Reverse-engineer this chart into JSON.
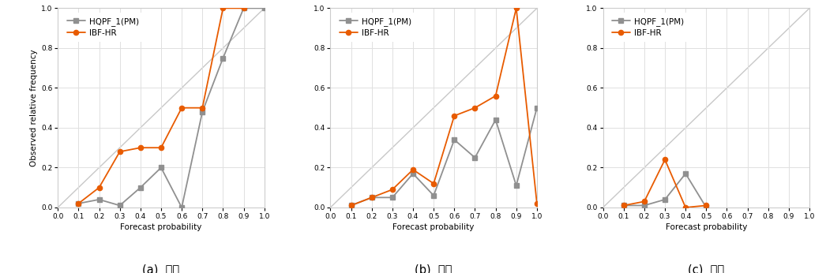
{
  "subplots": [
    {
      "label": "(a)  보행",
      "x": [
        0.1,
        0.2,
        0.3,
        0.4,
        0.5,
        0.6,
        0.7,
        0.8,
        0.9,
        1.0
      ],
      "hqpf": [
        0.02,
        0.04,
        0.01,
        0.1,
        0.2,
        0.0,
        0.48,
        0.75,
        1.0,
        1.0
      ],
      "ibfhr": [
        0.02,
        0.1,
        0.28,
        0.3,
        0.3,
        0.5,
        0.5,
        1.0,
        1.0,
        null
      ]
    },
    {
      "label": "(b)  교통",
      "x": [
        0.1,
        0.2,
        0.3,
        0.4,
        0.5,
        0.6,
        0.7,
        0.8,
        0.9,
        1.0
      ],
      "hqpf": [
        0.01,
        0.05,
        0.05,
        0.17,
        0.06,
        0.34,
        0.25,
        0.44,
        0.11,
        0.5
      ],
      "ibfhr": [
        0.01,
        0.05,
        0.09,
        0.19,
        0.12,
        0.46,
        0.5,
        0.56,
        1.0,
        0.02
      ]
    },
    {
      "label": "(c)  시설",
      "x": [
        0.1,
        0.2,
        0.3,
        0.4,
        0.5,
        0.6,
        0.7,
        0.8,
        0.9,
        1.0
      ],
      "hqpf": [
        0.01,
        0.01,
        0.04,
        0.17,
        0.0,
        null,
        null,
        null,
        null,
        null
      ],
      "ibfhr": [
        0.01,
        0.03,
        0.24,
        0.0,
        0.01,
        null,
        null,
        null,
        null,
        null
      ]
    }
  ],
  "hqpf_color": "#909090",
  "ibfhr_color": "#E85B00",
  "hqpf_label": "HQPF_1(PM)",
  "ibfhr_label": "IBF-HR",
  "xlabel": "Forecast probability",
  "ylabel": "Observed relative frequency",
  "xlim": [
    0.0,
    1.0
  ],
  "ylim": [
    0.0,
    1.0
  ],
  "xticks": [
    0.0,
    0.1,
    0.2,
    0.3,
    0.4,
    0.5,
    0.6,
    0.7,
    0.8,
    0.9,
    1.0
  ],
  "yticks": [
    0.0,
    0.2,
    0.4,
    0.6,
    0.8,
    1.0
  ],
  "diagonal_color": "#c8c8c8",
  "grid_color": "#e0e0e0",
  "background_color": "#ffffff"
}
